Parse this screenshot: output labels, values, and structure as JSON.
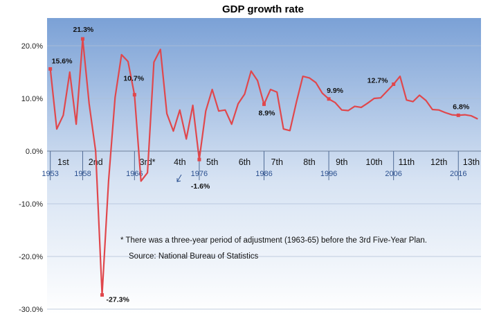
{
  "chart_data": {
    "type": "line",
    "title": "GDP growth rate",
    "xlabel": "",
    "ylabel": "",
    "ylim": [
      -30,
      25
    ],
    "yticks": [
      "20.0%",
      "10.0%",
      "0.0%",
      "-10.0%",
      "-20.0%",
      "-30.0%"
    ],
    "ytick_values": [
      20,
      10,
      0,
      -10,
      -20,
      -30
    ],
    "xlim": [
      1952.5,
      2019.5
    ],
    "grid": true,
    "series": [
      {
        "color": "#e0474c",
        "x": [
          1953,
          1954,
          1955,
          1956,
          1957,
          1958,
          1959,
          1960,
          1961,
          1962,
          1963,
          1964,
          1965,
          1966,
          1967,
          1968,
          1969,
          1970,
          1971,
          1972,
          1973,
          1974,
          1975,
          1976,
          1977,
          1978,
          1979,
          1980,
          1981,
          1982,
          1983,
          1984,
          1985,
          1986,
          1987,
          1988,
          1989,
          1990,
          1991,
          1992,
          1993,
          1994,
          1995,
          1996,
          1997,
          1998,
          1999,
          2000,
          2001,
          2002,
          2003,
          2004,
          2005,
          2006,
          2007,
          2008,
          2009,
          2010,
          2011,
          2012,
          2013,
          2014,
          2015,
          2016,
          2017,
          2018,
          2019
        ],
        "values": [
          15.6,
          4.2,
          6.8,
          15.0,
          5.1,
          21.3,
          9.0,
          0.0,
          -27.3,
          -5.6,
          10.2,
          18.3,
          17.0,
          10.7,
          -5.7,
          -4.1,
          16.9,
          19.3,
          7.1,
          3.8,
          7.8,
          2.3,
          8.7,
          -1.6,
          7.6,
          11.7,
          7.6,
          7.8,
          5.1,
          9.0,
          10.8,
          15.2,
          13.4,
          8.9,
          11.7,
          11.2,
          4.2,
          3.9,
          9.3,
          14.2,
          13.9,
          13.0,
          11.0,
          9.9,
          9.2,
          7.8,
          7.7,
          8.5,
          8.3,
          9.1,
          10.0,
          10.1,
          11.4,
          12.7,
          14.2,
          9.7,
          9.4,
          10.6,
          9.6,
          7.9,
          7.8,
          7.3,
          6.9,
          6.8,
          6.9,
          6.7,
          6.1
        ]
      }
    ],
    "plan_labels": [
      {
        "label": "1st",
        "x": 1955
      },
      {
        "label": "2nd",
        "x": 1960
      },
      {
        "label": "3rd*",
        "x": 1968
      },
      {
        "label": "4th",
        "x": 1973
      },
      {
        "label": "5th",
        "x": 1978
      },
      {
        "label": "6th",
        "x": 1983
      },
      {
        "label": "7th",
        "x": 1988
      },
      {
        "label": "8th",
        "x": 1993
      },
      {
        "label": "9th",
        "x": 1998
      },
      {
        "label": "10th",
        "x": 2003
      },
      {
        "label": "11th",
        "x": 2008
      },
      {
        "label": "12th",
        "x": 2013
      },
      {
        "label": "13th",
        "x": 2018
      }
    ],
    "plan_boundaries": [
      1953,
      1958,
      1966,
      1976,
      1986,
      1996,
      2006,
      2016
    ],
    "year_labels": [
      {
        "label": "1953",
        "x": 1953
      },
      {
        "label": "1958",
        "x": 1958
      },
      {
        "label": "1966",
        "x": 1966
      },
      {
        "label": "1976",
        "x": 1976
      },
      {
        "label": "1986",
        "x": 1986
      },
      {
        "label": "1996",
        "x": 1996
      },
      {
        "label": "2006",
        "x": 2006
      },
      {
        "label": "2016",
        "x": 2016
      }
    ],
    "data_labels": [
      {
        "x": 1953,
        "y": 15.6,
        "text": "15.6%"
      },
      {
        "x": 1958,
        "y": 21.3,
        "text": "21.3%"
      },
      {
        "x": 1961,
        "y": -27.3,
        "text": "-27.3%"
      },
      {
        "x": 1966,
        "y": 10.7,
        "text": "10.7%"
      },
      {
        "x": 1976,
        "y": -1.6,
        "text": "-1.6%"
      },
      {
        "x": 1986,
        "y": 8.9,
        "text": "8.9%"
      },
      {
        "x": 1996,
        "y": 9.9,
        "text": "9.9%"
      },
      {
        "x": 2006,
        "y": 12.7,
        "text": "12.7%"
      },
      {
        "x": 2016,
        "y": 6.8,
        "text": "6.8%"
      }
    ],
    "annotations": {
      "note": "* There was a three-year  period of adjustment (1963-65) before the 3rd Five-Year Plan.",
      "source": "Source:  National Bureau of Statistics"
    }
  },
  "colors": {
    "line": "#e0474c",
    "background_top": "#7ba1d6",
    "background_bottom": "#ffffff",
    "year_text": "#2a4f8f"
  }
}
